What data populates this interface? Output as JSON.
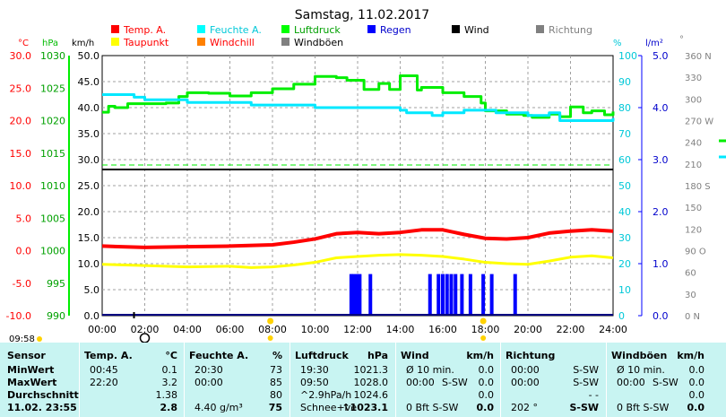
{
  "title": "Samstag, 11.02.2017",
  "legend": [
    {
      "label": "Temp. A.",
      "color": "#ff0000"
    },
    {
      "label": "Feuchte A.",
      "color": "#00ffff"
    },
    {
      "label": "Luftdruck",
      "color": "#00ff00"
    },
    {
      "label": "Regen",
      "color": "#0000ff"
    },
    {
      "label": "Wind",
      "color": "#000000"
    },
    {
      "label": "Richtung",
      "color": "#808080"
    },
    {
      "label": "Taupunkt",
      "color": "#ffff00"
    },
    {
      "label": "Windchill",
      "color": "#ff8000"
    },
    {
      "label": "Windböen",
      "color": "#808080"
    }
  ],
  "axis_units": {
    "temp": "°C",
    "press": "hPa",
    "wind": "km/h",
    "hum": "%",
    "rain": "l/m²",
    "dir": "°"
  },
  "corner_time": "09:58",
  "chart_data": {
    "type": "line",
    "x_ticks": [
      "00:00",
      "02:00",
      "04:00",
      "06:00",
      "08:00",
      "10:00",
      "12:00",
      "14:00",
      "16:00",
      "18:00",
      "20:00",
      "22:00",
      "24:00"
    ],
    "temp_ticks": [
      "30.0",
      "25.0",
      "20.0",
      "15.0",
      "10.0",
      "5.0",
      "0.0",
      "-5.0",
      "-10.0"
    ],
    "press_ticks": [
      "1030",
      "1025",
      "1020",
      "1015",
      "1010",
      "1005",
      "1000",
      "995",
      "990"
    ],
    "wind_ticks": [
      "50.0",
      "45.0",
      "40.0",
      "35.0",
      "30.0",
      "25.0",
      "20.0",
      "15.0",
      "10.0",
      "5.0",
      "0.0"
    ],
    "hum_ticks": [
      "100",
      "90",
      "80",
      "70",
      "60",
      "50",
      "40",
      "30",
      "20",
      "10",
      "0"
    ],
    "rain_ticks": [
      "5.0",
      "4.0",
      "3.0",
      "2.0",
      "1.0",
      "0.0"
    ],
    "dir_ticks": [
      "360 N",
      "330",
      "300",
      "270 W",
      "240",
      "210",
      "180 S",
      "150",
      "120",
      "90 O",
      "60",
      "30",
      "0 N"
    ],
    "ylim_temp": [
      -10,
      30
    ],
    "ylim_wind": [
      0,
      50
    ],
    "ylim_hum": [
      0,
      100
    ],
    "series": [
      {
        "name": "Luftdruck",
        "color": "#00ee00",
        "x": [
          0,
          0.3,
          0.6,
          1.2,
          2.0,
          3.0,
          3.6,
          4.0,
          5.0,
          6.0,
          7.0,
          8.0,
          9.0,
          10.0,
          11.0,
          11.5,
          12.0,
          12.3,
          13.0,
          13.5,
          14.0,
          14.8,
          15.0,
          16.0,
          17.0,
          17.8,
          18.0,
          19.0,
          19.8,
          20.2,
          21.0,
          21.5,
          22.0,
          22.6,
          23.0,
          23.6,
          24.0
        ],
        "y": [
          1021.3,
          1022.2,
          1022.0,
          1022.6,
          1022.6,
          1022.7,
          1023.7,
          1024.3,
          1024.2,
          1023.8,
          1024.3,
          1024.9,
          1025.6,
          1026.8,
          1026.6,
          1026.2,
          1026.2,
          1024.8,
          1025.7,
          1024.8,
          1026.9,
          1024.7,
          1025.1,
          1024.3,
          1023.7,
          1022.7,
          1021.5,
          1021.0,
          1020.8,
          1020.5,
          1021.0,
          1020.6,
          1022.1,
          1021.2,
          1021.5,
          1020.9,
          1021.4
        ]
      },
      {
        "name": "Feuchte A.",
        "color": "#00e8ff",
        "x": [
          0,
          1.5,
          2.0,
          3.5,
          4.0,
          6.0,
          7.0,
          9.0,
          10.0,
          12.0,
          13.0,
          14.0,
          14.3,
          15.0,
          15.5,
          16.0,
          17.0,
          18.0,
          18.5,
          19.5,
          20.0,
          21.0,
          21.5,
          22.0,
          23.0,
          24.0
        ],
        "y": [
          85,
          84,
          83,
          83,
          82,
          82,
          81,
          81,
          80,
          80,
          80,
          79,
          78,
          78,
          77,
          78,
          79,
          79,
          78,
          78,
          77,
          78,
          75,
          75,
          75,
          76
        ]
      },
      {
        "name": "Temp. A.",
        "color": "#ff0000",
        "x": [
          0,
          2,
          4,
          6,
          8,
          9,
          10,
          11,
          12,
          13,
          14,
          15,
          16,
          17,
          18,
          19,
          20,
          21,
          22,
          23,
          24
        ],
        "y": [
          0.7,
          0.5,
          0.6,
          0.7,
          0.9,
          1.3,
          1.8,
          2.6,
          2.8,
          2.6,
          2.8,
          3.2,
          3.2,
          2.5,
          1.9,
          1.8,
          2.0,
          2.7,
          3.0,
          3.2,
          3.0
        ]
      },
      {
        "name": "Taupunkt",
        "color": "#ffff00",
        "x": [
          0,
          2,
          4,
          6,
          7,
          8,
          9,
          10,
          11,
          12,
          13,
          14,
          15,
          16,
          17,
          18,
          19,
          20,
          21,
          22,
          23,
          24
        ],
        "y": [
          -2.1,
          -2.3,
          -2.5,
          -2.4,
          -2.6,
          -2.5,
          -2.2,
          -1.8,
          -1.1,
          -0.9,
          -0.7,
          -0.6,
          -0.7,
          -0.9,
          -1.3,
          -1.8,
          -2.0,
          -2.1,
          -1.6,
          -1.0,
          -0.8,
          -1.1
        ]
      }
    ],
    "rain_bars": {
      "color": "#0000ff",
      "x": [
        11.7,
        11.8,
        11.95,
        12.1,
        12.6,
        15.4,
        15.8,
        16.0,
        16.2,
        16.4,
        16.6,
        16.9,
        17.3,
        17.9,
        18.3,
        19.4
      ],
      "values": [
        0.8,
        0.8,
        0.8,
        0.8,
        0.8,
        0.8,
        0.8,
        0.8,
        0.8,
        0.8,
        0.8,
        0.8,
        0.8,
        0.8,
        0.8,
        0.8
      ]
    },
    "markers": [
      {
        "x": 2.0,
        "symbol": "moon",
        "color": "#000000"
      },
      {
        "x": 7.9,
        "symbol": "sun",
        "color": "#ffd200"
      },
      {
        "x": 17.9,
        "symbol": "sun",
        "color": "#ffd200"
      }
    ]
  },
  "stats": {
    "sensor": {
      "header": "Sensor",
      "rows": [
        "MinWert",
        "MaxWert",
        "Durchschnitt",
        "11.02. 23:55"
      ]
    },
    "temp": {
      "header": "Temp. A.",
      "unit": "°C",
      "time": [
        "00:45",
        "22:20",
        "",
        ""
      ],
      "val": [
        "0.1",
        "3.2",
        "1.38",
        "2.8"
      ]
    },
    "hum": {
      "header": "Feuchte A.",
      "unit": "%",
      "time": [
        "20:30",
        "00:00",
        "",
        "4.40 g/m³"
      ],
      "val": [
        "73",
        "85",
        "80",
        "75"
      ]
    },
    "press": {
      "header": "Luftdruck",
      "unit": "hPa",
      "time": [
        "19:30",
        "09:50",
        "^2.9hPa/h",
        "Schnee+ve"
      ],
      "val": [
        "1021.3",
        "1028.0",
        "1024.6",
        "↑1023.1"
      ]
    },
    "wind": {
      "header": "Wind",
      "unit": "km/h",
      "time": [
        "Ø 10 min.",
        "00:00",
        "",
        "0 Bft S-SW"
      ],
      "mid": [
        "",
        "S-SW",
        "",
        ""
      ],
      "val": [
        "0.0",
        "0.0",
        "0.0",
        "0.0"
      ]
    },
    "dir": {
      "header": "Richtung",
      "time": [
        "00:00",
        "00:00",
        "",
        "202 °"
      ],
      "val": [
        "S-SW",
        "S-SW",
        "- -",
        "S-SW"
      ]
    },
    "gust": {
      "header": "Windböen",
      "unit": "km/h",
      "time": [
        "Ø 10 min.",
        "00:00",
        "",
        "0 Bft S-SW"
      ],
      "mid": [
        "",
        "S-SW",
        "",
        ""
      ],
      "val": [
        "0.0",
        "0.0",
        "0.0",
        "0.0"
      ]
    }
  }
}
